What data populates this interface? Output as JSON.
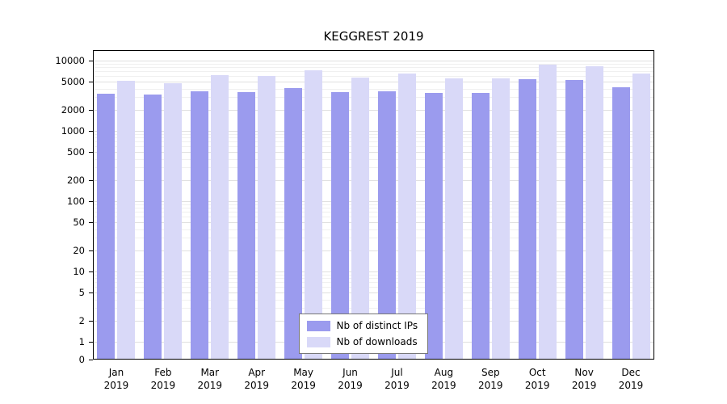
{
  "chart_data": {
    "type": "bar",
    "title": "KEGGREST 2019",
    "categories": [
      "Jan",
      "Feb",
      "Mar",
      "Apr",
      "May",
      "Jun",
      "Jul",
      "Aug",
      "Sep",
      "Oct",
      "Nov",
      "Dec"
    ],
    "category_year": "2019",
    "series": [
      {
        "name": "Nb of distinct IPs",
        "color": "#9b9bee",
        "values": [
          3400,
          3300,
          3700,
          3550,
          4100,
          3550,
          3650,
          3450,
          3450,
          5500,
          5300,
          4200
        ]
      },
      {
        "name": "Nb of downloads",
        "color": "#d9d9f8",
        "values": [
          5200,
          4800,
          6200,
          6000,
          7300,
          5800,
          6500,
          5600,
          5600,
          8700,
          8300,
          6600
        ]
      }
    ],
    "yticks": [
      0,
      1,
      2,
      5,
      10,
      20,
      50,
      100,
      200,
      500,
      1000,
      2000,
      5000,
      10000
    ],
    "ytick_labels": [
      "0",
      "1",
      "2",
      "5",
      "10",
      "20",
      "50",
      "100",
      "200",
      "500",
      "1000",
      "2000",
      "5000",
      "10000"
    ],
    "yscale": "log-with-zero",
    "ylim": [
      0,
      10000
    ],
    "grid": "horizontal",
    "legend_position": "bottom-center",
    "legend_entries": [
      "Nb of distinct IPs",
      "Nb of downloads"
    ]
  }
}
